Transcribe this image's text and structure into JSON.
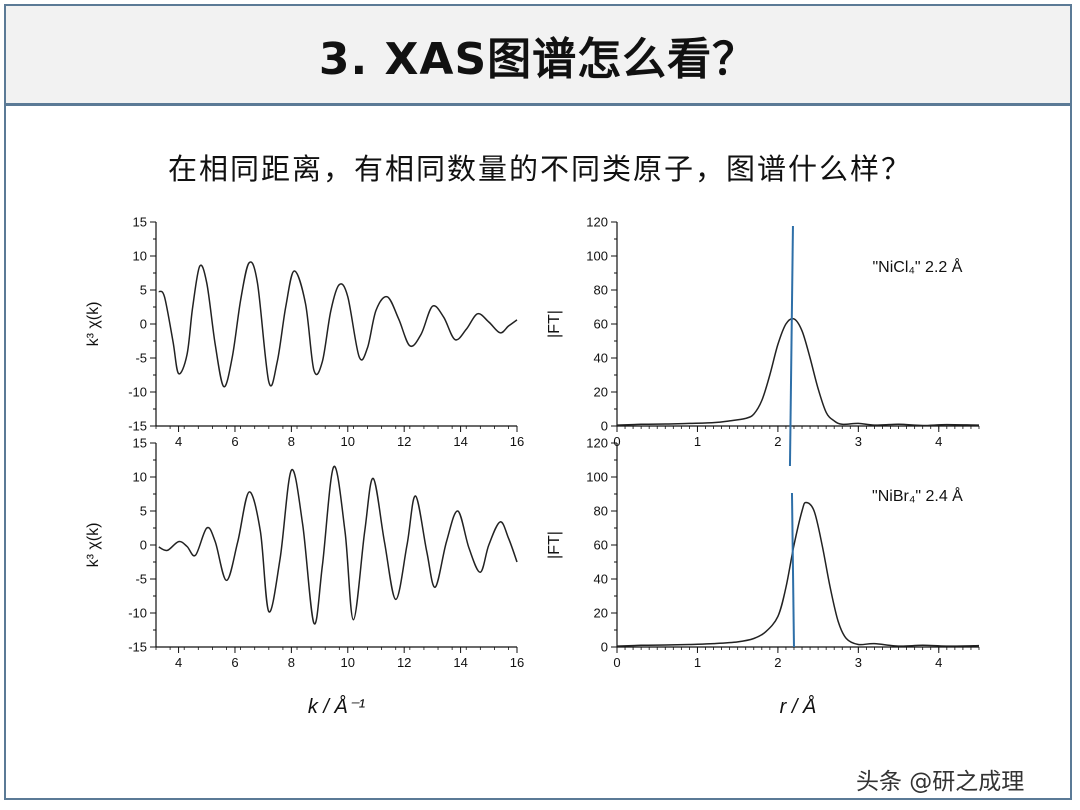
{
  "slide": {
    "title": "3. XAS图谱怎么看？",
    "subtitle": "在相同距离，有相同数量的不同类原子，图谱什么样？",
    "watermark": "头条 @研之成理"
  },
  "colors": {
    "curve": "#222222",
    "marker": "#2e6fa8",
    "border": "#5b7a96"
  },
  "chart_data": [
    {
      "id": "exafs-top",
      "type": "line",
      "ylabel": "k³ χ(k)",
      "xlabel": "",
      "xlim": [
        3.2,
        16
      ],
      "ylim": [
        -15,
        15
      ],
      "xticks": [
        4,
        6,
        8,
        10,
        12,
        14,
        16
      ],
      "yticks": [
        -15,
        -10,
        -5,
        0,
        5,
        10,
        15
      ],
      "series": [
        {
          "x": [
            3.3,
            3.5,
            3.8,
            4.0,
            4.3,
            4.5,
            4.75,
            5.0,
            5.3,
            5.6,
            5.9,
            6.2,
            6.5,
            6.8,
            7.2,
            7.5,
            7.8,
            8.1,
            8.5,
            8.8,
            9.1,
            9.4,
            9.7,
            10.0,
            10.4,
            10.7,
            11.0,
            11.4,
            11.8,
            12.2,
            12.6,
            13.0,
            13.4,
            13.8,
            14.2,
            14.6,
            15.0,
            15.4,
            15.7,
            16.0
          ],
          "y": [
            4.8,
            4.0,
            -2.5,
            -7.3,
            -4.5,
            2.5,
            8.5,
            6.0,
            -3.0,
            -9.2,
            -5.0,
            3.5,
            9.0,
            6.0,
            -8.5,
            -5.5,
            2.5,
            7.8,
            3.0,
            -6.8,
            -5.5,
            2.0,
            5.8,
            4.0,
            -4.8,
            -3.5,
            2.0,
            4.0,
            0.8,
            -3.2,
            -1.5,
            2.6,
            1.0,
            -2.3,
            -0.8,
            1.5,
            0.3,
            -1.3,
            -0.3,
            0.6
          ]
        }
      ]
    },
    {
      "id": "exafs-bottom",
      "type": "line",
      "ylabel": "k³ χ(k)",
      "xlabel": "k / Å⁻¹",
      "xlim": [
        3.2,
        16
      ],
      "ylim": [
        -15,
        15
      ],
      "xticks": [
        4,
        6,
        8,
        10,
        12,
        14,
        16
      ],
      "yticks": [
        -15,
        -10,
        -5,
        0,
        5,
        10,
        15
      ],
      "series": [
        {
          "x": [
            3.3,
            3.6,
            4.0,
            4.3,
            4.6,
            5.0,
            5.3,
            5.7,
            6.1,
            6.5,
            6.9,
            7.2,
            7.6,
            8.0,
            8.4,
            8.8,
            9.1,
            9.5,
            9.9,
            10.2,
            10.6,
            10.9,
            11.3,
            11.7,
            12.1,
            12.4,
            12.8,
            13.1,
            13.5,
            13.9,
            14.3,
            14.7,
            15.0,
            15.4,
            15.7,
            16.0
          ],
          "y": [
            -0.3,
            -0.8,
            0.5,
            -0.2,
            -1.5,
            2.5,
            0.5,
            -5.2,
            0.5,
            7.8,
            2.0,
            -9.8,
            -2.0,
            11.0,
            3.0,
            -11.5,
            -3.0,
            11.5,
            2.0,
            -11.0,
            2.0,
            9.8,
            0.5,
            -8.0,
            0.0,
            7.2,
            -1.0,
            -6.2,
            0.5,
            5.0,
            -0.5,
            -4.0,
            0.0,
            3.4,
            1.0,
            -2.5
          ]
        }
      ]
    },
    {
      "id": "ft-top",
      "type": "line",
      "ylabel": "|FT|",
      "xlabel": "",
      "xlim": [
        0,
        4.5
      ],
      "ylim": [
        0,
        120
      ],
      "xticks": [
        0,
        1,
        2,
        3,
        4
      ],
      "yticks": [
        0,
        20,
        40,
        60,
        80,
        100,
        120
      ],
      "annotation": {
        "text": "\"NiCl₄\" 2.2 Å"
      },
      "marker_x": 2.15,
      "series": [
        {
          "x": [
            0,
            0.3,
            0.6,
            0.9,
            1.2,
            1.4,
            1.6,
            1.7,
            1.8,
            1.9,
            2.0,
            2.1,
            2.2,
            2.3,
            2.4,
            2.5,
            2.6,
            2.7,
            2.8,
            3.0,
            3.2,
            3.5,
            3.8,
            4.1,
            4.5
          ],
          "y": [
            0.5,
            1.0,
            1.2,
            1.5,
            2.0,
            3.0,
            4.5,
            7.0,
            15.0,
            30.0,
            48.0,
            60.0,
            63.0,
            56.0,
            40.0,
            22.0,
            8.0,
            3.0,
            1.0,
            1.5,
            0.5,
            1.0,
            0.3,
            0.8,
            0.5
          ]
        }
      ]
    },
    {
      "id": "ft-bottom",
      "type": "line",
      "ylabel": "|FT|",
      "xlabel": "r / Å",
      "xlim": [
        0,
        4.5
      ],
      "ylim": [
        0,
        120
      ],
      "xticks": [
        0,
        1,
        2,
        3,
        4
      ],
      "yticks": [
        0,
        20,
        40,
        60,
        80,
        100,
        120
      ],
      "annotation": {
        "text": "\"NiBr₄\" 2.4 Å"
      },
      "marker_x": 2.2,
      "series": [
        {
          "x": [
            0,
            0.3,
            0.6,
            0.9,
            1.2,
            1.5,
            1.7,
            1.85,
            2.0,
            2.1,
            2.2,
            2.3,
            2.35,
            2.45,
            2.55,
            2.65,
            2.75,
            2.85,
            3.0,
            3.2,
            3.5,
            3.8,
            4.1,
            4.5
          ],
          "y": [
            0.5,
            1.0,
            1.2,
            1.5,
            2.0,
            3.0,
            5.0,
            9.0,
            18.0,
            35.0,
            60.0,
            80.0,
            85.0,
            80.0,
            60.0,
            35.0,
            15.0,
            5.0,
            1.5,
            2.0,
            0.5,
            1.0,
            0.5,
            0.8
          ]
        }
      ]
    }
  ]
}
